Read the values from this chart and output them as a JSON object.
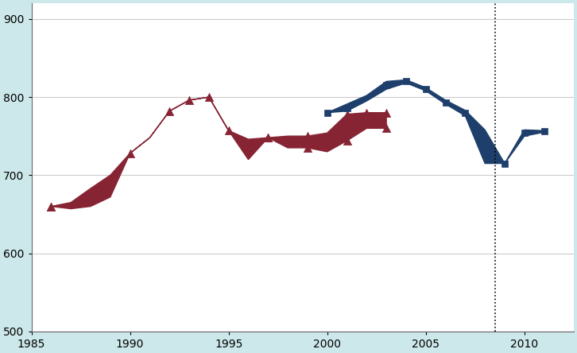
{
  "background_color": "#cde8ea",
  "plot_bg": "#ffffff",
  "red_color": "#872434",
  "blue_color": "#1e3f6b",
  "xlim": [
    1985.5,
    2012.5
  ],
  "ylim": [
    500,
    920
  ],
  "yticks": [
    500,
    600,
    700,
    800,
    900
  ],
  "xticks": [
    1985,
    1990,
    1995,
    2000,
    2005,
    2010
  ],
  "vline_x": 2008.5,
  "red_series1": [
    [
      1986,
      660
    ],
    [
      1987,
      665
    ],
    [
      1988,
      683
    ],
    [
      1989,
      700
    ],
    [
      1990,
      728
    ],
    [
      1991,
      748
    ],
    [
      1992,
      782
    ],
    [
      1993,
      796
    ],
    [
      1994,
      800
    ],
    [
      1995,
      757
    ],
    [
      1996,
      746
    ],
    [
      1997,
      748
    ],
    [
      1998,
      750
    ],
    [
      1999,
      750
    ],
    [
      2000,
      754
    ],
    [
      2001,
      778
    ],
    [
      2002,
      780
    ],
    [
      2003,
      780
    ]
  ],
  "red_series2": [
    [
      1986,
      660
    ],
    [
      1987,
      657
    ],
    [
      1988,
      660
    ],
    [
      1989,
      672
    ],
    [
      1990,
      728
    ],
    [
      1991,
      748
    ],
    [
      1992,
      782
    ],
    [
      1993,
      796
    ],
    [
      1994,
      800
    ],
    [
      1995,
      757
    ],
    [
      1996,
      720
    ],
    [
      1997,
      748
    ],
    [
      1998,
      735
    ],
    [
      1999,
      735
    ],
    [
      2000,
      730
    ],
    [
      2001,
      744
    ],
    [
      2002,
      760
    ],
    [
      2003,
      760
    ]
  ],
  "red_markers1": [
    [
      1986,
      660
    ],
    [
      1992,
      782
    ],
    [
      1993,
      796
    ],
    [
      1994,
      800
    ],
    [
      1995,
      757
    ],
    [
      1997,
      748
    ],
    [
      1999,
      750
    ],
    [
      2001,
      778
    ],
    [
      2002,
      780
    ],
    [
      2003,
      780
    ]
  ],
  "red_markers2": [
    [
      1986,
      660
    ],
    [
      1990,
      728
    ],
    [
      1997,
      748
    ],
    [
      1999,
      735
    ],
    [
      2001,
      744
    ],
    [
      2003,
      760
    ]
  ],
  "blue_series1": [
    [
      2000,
      780
    ],
    [
      2001,
      791
    ],
    [
      2002,
      802
    ],
    [
      2003,
      820
    ],
    [
      2004,
      822
    ],
    [
      2005,
      812
    ],
    [
      2006,
      796
    ],
    [
      2007,
      783
    ],
    [
      2008,
      758
    ],
    [
      2009,
      715
    ],
    [
      2010,
      758
    ],
    [
      2011,
      757
    ]
  ],
  "blue_series2": [
    [
      2000,
      780
    ],
    [
      2001,
      782
    ],
    [
      2002,
      795
    ],
    [
      2003,
      810
    ],
    [
      2004,
      818
    ],
    [
      2005,
      808
    ],
    [
      2006,
      791
    ],
    [
      2007,
      776
    ],
    [
      2008,
      715
    ],
    [
      2009,
      715
    ],
    [
      2010,
      750
    ],
    [
      2011,
      755
    ]
  ],
  "blue_markers": [
    [
      2000,
      780
    ],
    [
      2001,
      786
    ],
    [
      2003,
      815
    ],
    [
      2004,
      820
    ],
    [
      2005,
      810
    ],
    [
      2006,
      793
    ],
    [
      2007,
      780
    ],
    [
      2008,
      736
    ],
    [
      2009,
      715
    ],
    [
      2010,
      754
    ],
    [
      2011,
      756
    ]
  ]
}
